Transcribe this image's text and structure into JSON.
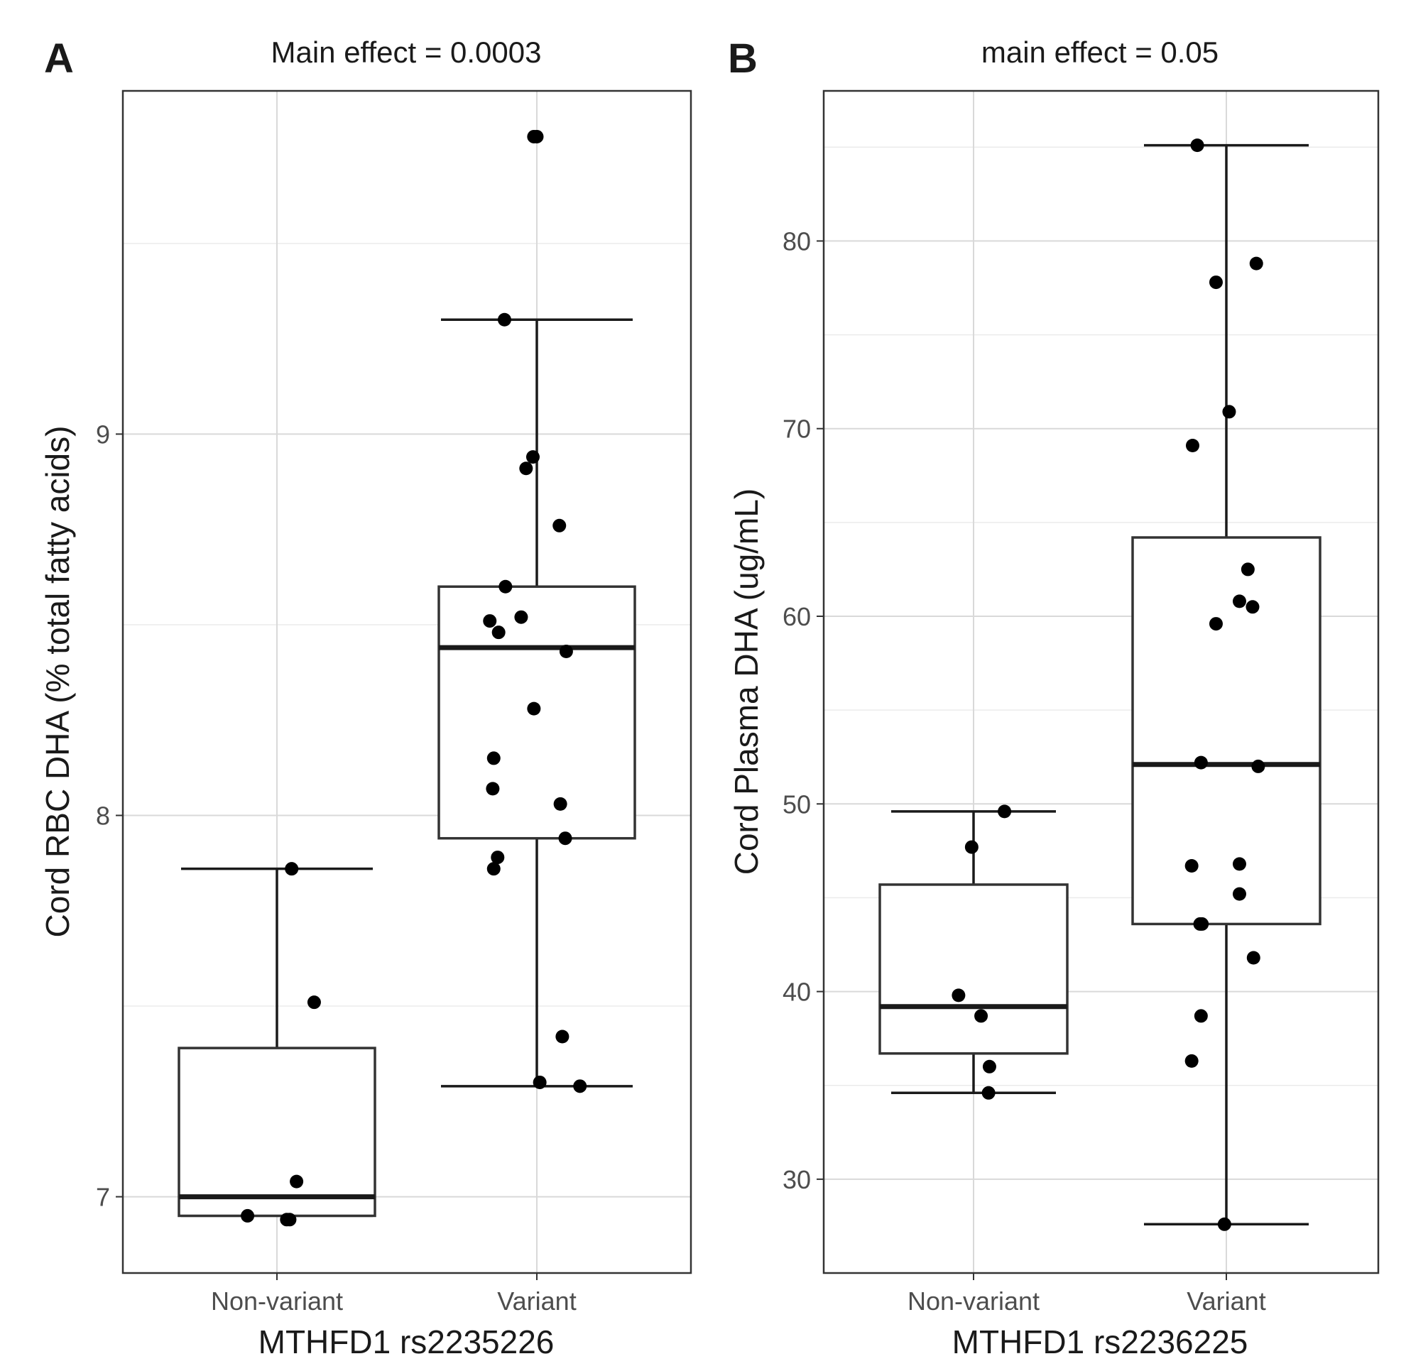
{
  "chart_data": [
    {
      "type": "boxplot",
      "panel_label": "A",
      "title": "Main effect = 0.0003",
      "xlabel": "MTHFD1 rs2235226",
      "ylabel": "Cord RBC DHA (% total fatty acids)",
      "categories": [
        "Non-variant",
        "Variant"
      ],
      "ylim": [
        6.8,
        9.9
      ],
      "yticks": [
        7,
        8,
        9
      ],
      "yticks_minor": [
        7.5,
        8.5,
        9.5
      ],
      "boxes": [
        {
          "category": "Non-variant",
          "whisker_low": 6.95,
          "q1": 6.95,
          "median": 7.0,
          "q3": 7.39,
          "whisker_high": 7.86
        },
        {
          "category": "Variant",
          "whisker_low": 7.29,
          "q1": 7.94,
          "median": 8.44,
          "q3": 8.6,
          "whisker_high": 9.3
        }
      ],
      "points": [
        {
          "category": "Non-variant",
          "jitter": -0.3,
          "y": 6.95
        },
        {
          "category": "Non-variant",
          "jitter": 0.1,
          "y": 6.94
        },
        {
          "category": "Non-variant",
          "jitter": 0.13,
          "y": 6.94
        },
        {
          "category": "Non-variant",
          "jitter": 0.2,
          "y": 7.04
        },
        {
          "category": "Non-variant",
          "jitter": 0.38,
          "y": 7.51
        },
        {
          "category": "Non-variant",
          "jitter": 0.15,
          "y": 7.86
        },
        {
          "category": "Variant",
          "jitter": 0.0,
          "y": 9.78
        },
        {
          "category": "Variant",
          "jitter": -0.03,
          "y": 9.78
        },
        {
          "category": "Variant",
          "jitter": -0.33,
          "y": 9.3
        },
        {
          "category": "Variant",
          "jitter": -0.04,
          "y": 8.94
        },
        {
          "category": "Variant",
          "jitter": -0.11,
          "y": 8.91
        },
        {
          "category": "Variant",
          "jitter": 0.23,
          "y": 8.76
        },
        {
          "category": "Variant",
          "jitter": -0.32,
          "y": 8.6
        },
        {
          "category": "Variant",
          "jitter": -0.16,
          "y": 8.52
        },
        {
          "category": "Variant",
          "jitter": -0.48,
          "y": 8.51
        },
        {
          "category": "Variant",
          "jitter": -0.39,
          "y": 8.48
        },
        {
          "category": "Variant",
          "jitter": 0.3,
          "y": 8.43
        },
        {
          "category": "Variant",
          "jitter": -0.03,
          "y": 8.28
        },
        {
          "category": "Variant",
          "jitter": -0.44,
          "y": 8.15
        },
        {
          "category": "Variant",
          "jitter": -0.45,
          "y": 8.07
        },
        {
          "category": "Variant",
          "jitter": 0.24,
          "y": 8.03
        },
        {
          "category": "Variant",
          "jitter": 0.29,
          "y": 7.94
        },
        {
          "category": "Variant",
          "jitter": -0.4,
          "y": 7.89
        },
        {
          "category": "Variant",
          "jitter": -0.44,
          "y": 7.86
        },
        {
          "category": "Variant",
          "jitter": 0.26,
          "y": 7.42
        },
        {
          "category": "Variant",
          "jitter": 0.03,
          "y": 7.3
        },
        {
          "category": "Variant",
          "jitter": 0.44,
          "y": 7.29
        }
      ]
    },
    {
      "type": "boxplot",
      "panel_label": "B",
      "title": "main effect = 0.05",
      "xlabel": "MTHFD1 rs2236225",
      "ylabel": "Cord Plasma DHA  (ug/mL)",
      "categories": [
        "Non-variant",
        "Variant"
      ],
      "ylim": [
        25,
        88
      ],
      "yticks": [
        30,
        40,
        50,
        60,
        70,
        80
      ],
      "yticks_minor": [
        35,
        45,
        55,
        65,
        75,
        85
      ],
      "boxes": [
        {
          "category": "Non-variant",
          "whisker_low": 34.6,
          "q1": 36.7,
          "median": 39.2,
          "q3": 45.7,
          "whisker_high": 49.6
        },
        {
          "category": "Variant",
          "whisker_low": 27.6,
          "q1": 43.6,
          "median": 52.1,
          "q3": 64.2,
          "whisker_high": 85.1
        }
      ],
      "points": [
        {
          "category": "Non-variant",
          "jitter": 0.33,
          "y": 49.6
        },
        {
          "category": "Non-variant",
          "jitter": -0.02,
          "y": 47.7
        },
        {
          "category": "Non-variant",
          "jitter": -0.16,
          "y": 39.8
        },
        {
          "category": "Non-variant",
          "jitter": 0.08,
          "y": 38.7
        },
        {
          "category": "Non-variant",
          "jitter": 0.17,
          "y": 36.0
        },
        {
          "category": "Non-variant",
          "jitter": 0.16,
          "y": 34.6
        },
        {
          "category": "Variant",
          "jitter": -0.31,
          "y": 85.1
        },
        {
          "category": "Variant",
          "jitter": 0.32,
          "y": 78.8
        },
        {
          "category": "Variant",
          "jitter": -0.11,
          "y": 77.8
        },
        {
          "category": "Variant",
          "jitter": 0.03,
          "y": 70.9
        },
        {
          "category": "Variant",
          "jitter": -0.36,
          "y": 69.1
        },
        {
          "category": "Variant",
          "jitter": 0.23,
          "y": 62.5
        },
        {
          "category": "Variant",
          "jitter": 0.14,
          "y": 60.8
        },
        {
          "category": "Variant",
          "jitter": 0.28,
          "y": 60.5
        },
        {
          "category": "Variant",
          "jitter": -0.11,
          "y": 59.6
        },
        {
          "category": "Variant",
          "jitter": -0.27,
          "y": 52.2
        },
        {
          "category": "Variant",
          "jitter": 0.34,
          "y": 52.0
        },
        {
          "category": "Variant",
          "jitter": 0.14,
          "y": 46.8
        },
        {
          "category": "Variant",
          "jitter": -0.37,
          "y": 46.7
        },
        {
          "category": "Variant",
          "jitter": 0.14,
          "y": 45.2
        },
        {
          "category": "Variant",
          "jitter": -0.28,
          "y": 43.6
        },
        {
          "category": "Variant",
          "jitter": -0.26,
          "y": 43.6
        },
        {
          "category": "Variant",
          "jitter": 0.29,
          "y": 41.8
        },
        {
          "category": "Variant",
          "jitter": -0.27,
          "y": 38.7
        },
        {
          "category": "Variant",
          "jitter": -0.37,
          "y": 36.3
        },
        {
          "category": "Variant",
          "jitter": -0.02,
          "y": 27.6
        }
      ]
    }
  ]
}
